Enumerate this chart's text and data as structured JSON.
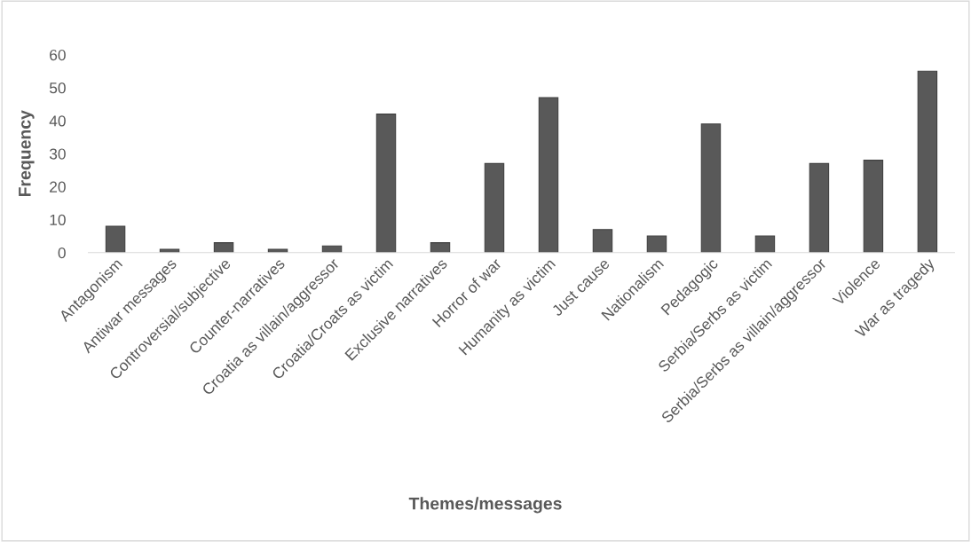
{
  "chart_data": {
    "type": "bar",
    "xlabel": "Themes/messages",
    "ylabel": "Frequency",
    "categories": [
      "Antagonism",
      "Antiwar messages",
      "Controversial/subjective",
      "Counter-narratives",
      "Croatia as villain/aggressor",
      "Croatia/Croats as victim",
      "Exclusive narratives",
      "Horror of war",
      "Humanity as victim",
      "Just cause",
      "Nationalism",
      "Pedagogic",
      "Serbia/Serbs as victim",
      "Serbia/Serbs as villain/aggressor",
      "Violence",
      "War as tragedy"
    ],
    "values": [
      8,
      1,
      3,
      1,
      2,
      42,
      3,
      27,
      47,
      7,
      5,
      39,
      5,
      27,
      28,
      55
    ],
    "color": "#595959",
    "ylim": [
      0,
      60
    ],
    "yticks": [
      0,
      10,
      20,
      30,
      40,
      50,
      60
    ],
    "grid": false,
    "legend": false
  }
}
